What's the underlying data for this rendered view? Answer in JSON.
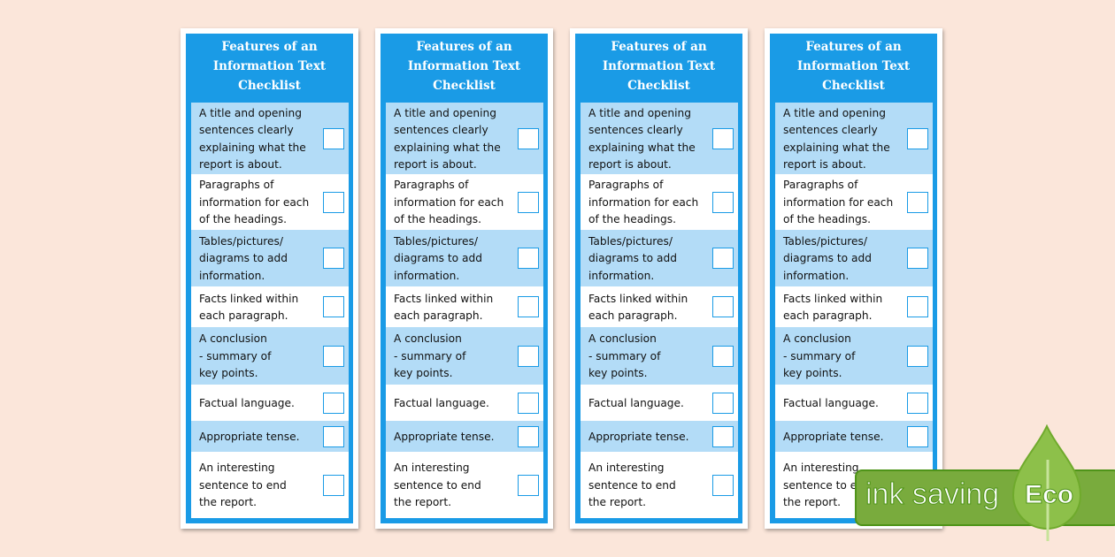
{
  "checklist": {
    "title_lines": [
      "Features of an",
      "Information Text",
      "Checklist"
    ],
    "items": [
      {
        "lines": [
          "A title and opening",
          "sentences clearly",
          "explaining what the",
          "report is about."
        ],
        "checked": false
      },
      {
        "lines": [
          "Paragraphs of",
          "information for each",
          "of the headings."
        ],
        "checked": false
      },
      {
        "lines": [
          "Tables/pictures/",
          "diagrams to add",
          "information."
        ],
        "checked": false
      },
      {
        "lines": [
          "Facts linked within",
          "each paragraph."
        ],
        "checked": false
      },
      {
        "lines": [
          "A conclusion",
          "- summary of",
          "key points."
        ],
        "checked": false
      },
      {
        "lines": [
          "Factual language."
        ],
        "checked": false
      },
      {
        "lines": [
          "Appropriate tense."
        ],
        "checked": false
      },
      {
        "lines": [
          "An interesting",
          "sentence to end",
          "the report."
        ],
        "checked": false
      }
    ]
  },
  "copies": 4,
  "badge": {
    "text": "ink saving",
    "label": "Eco",
    "leaf_icon": "leaf-icon"
  },
  "colors": {
    "header": "#1a9be6",
    "row_light": "#b3dcf7",
    "badge_green": "#79ab3d",
    "leaf_green": "#8dc04a",
    "background": "#fbe6da"
  }
}
